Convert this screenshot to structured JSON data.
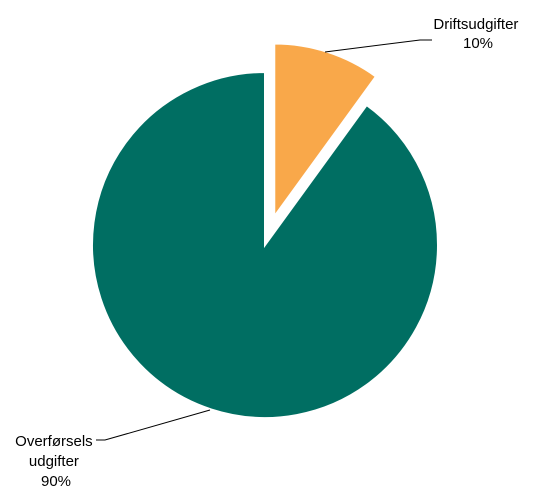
{
  "chart_data": {
    "type": "pie",
    "categories": [
      "Driftsudgifter",
      "Overførsels udgifter"
    ],
    "values": [
      10,
      90
    ],
    "labels": [
      {
        "lines": [
          "Driftsudgifter",
          "10%"
        ]
      },
      {
        "lines": [
          "Overførsels",
          "udgifter",
          "90%"
        ]
      }
    ],
    "colors": [
      "#F9A84A",
      "#006E62"
    ],
    "exploded": [
      true,
      false
    ],
    "start_angle": "12 o'clock",
    "direction": "clockwise",
    "legend": "none",
    "title": ""
  }
}
